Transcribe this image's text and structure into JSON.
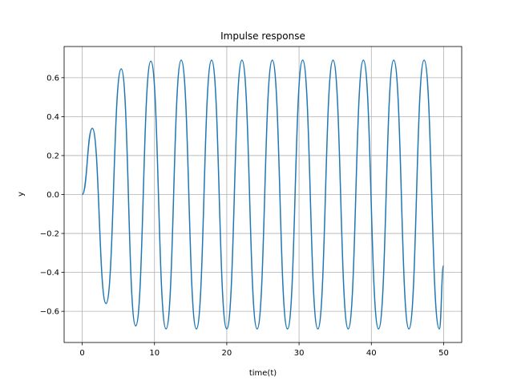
{
  "chart_data": {
    "type": "line",
    "title": "Impulse response",
    "xlabel": "time(t)",
    "ylabel": "y",
    "xlim": [
      -2.5,
      52.5
    ],
    "ylim": [
      -0.76,
      0.76
    ],
    "xticks": [
      0,
      10,
      20,
      30,
      40,
      50
    ],
    "xtick_labels": [
      "0",
      "10",
      "20",
      "30",
      "40",
      "50"
    ],
    "yticks": [
      -0.6,
      -0.4,
      -0.2,
      0.0,
      0.2,
      0.4,
      0.6
    ],
    "ytick_labels": [
      "−0.6",
      "−0.4",
      "−0.2",
      "0.0",
      "0.2",
      "0.4",
      "0.6"
    ],
    "grid": true,
    "series": [
      {
        "color": "#1f77b4",
        "x": [
          0,
          1.4,
          3.3,
          5.4,
          7.4,
          9.5,
          11.6,
          13.7,
          15.8,
          17.9,
          20.0,
          22.1,
          24.2,
          26.3,
          28.4,
          30.5,
          32.6,
          34.7,
          36.8,
          38.9,
          41.0,
          43.1,
          45.2,
          47.3,
          49.4,
          50.0
        ],
        "y": [
          0.0,
          0.34,
          -0.56,
          0.645,
          -0.675,
          0.685,
          -0.69,
          0.69,
          -0.69,
          0.69,
          -0.69,
          0.69,
          -0.69,
          0.69,
          -0.69,
          0.69,
          -0.69,
          0.69,
          -0.69,
          0.69,
          -0.69,
          0.69,
          -0.69,
          0.69,
          -0.69,
          -0.365
        ]
      }
    ]
  }
}
